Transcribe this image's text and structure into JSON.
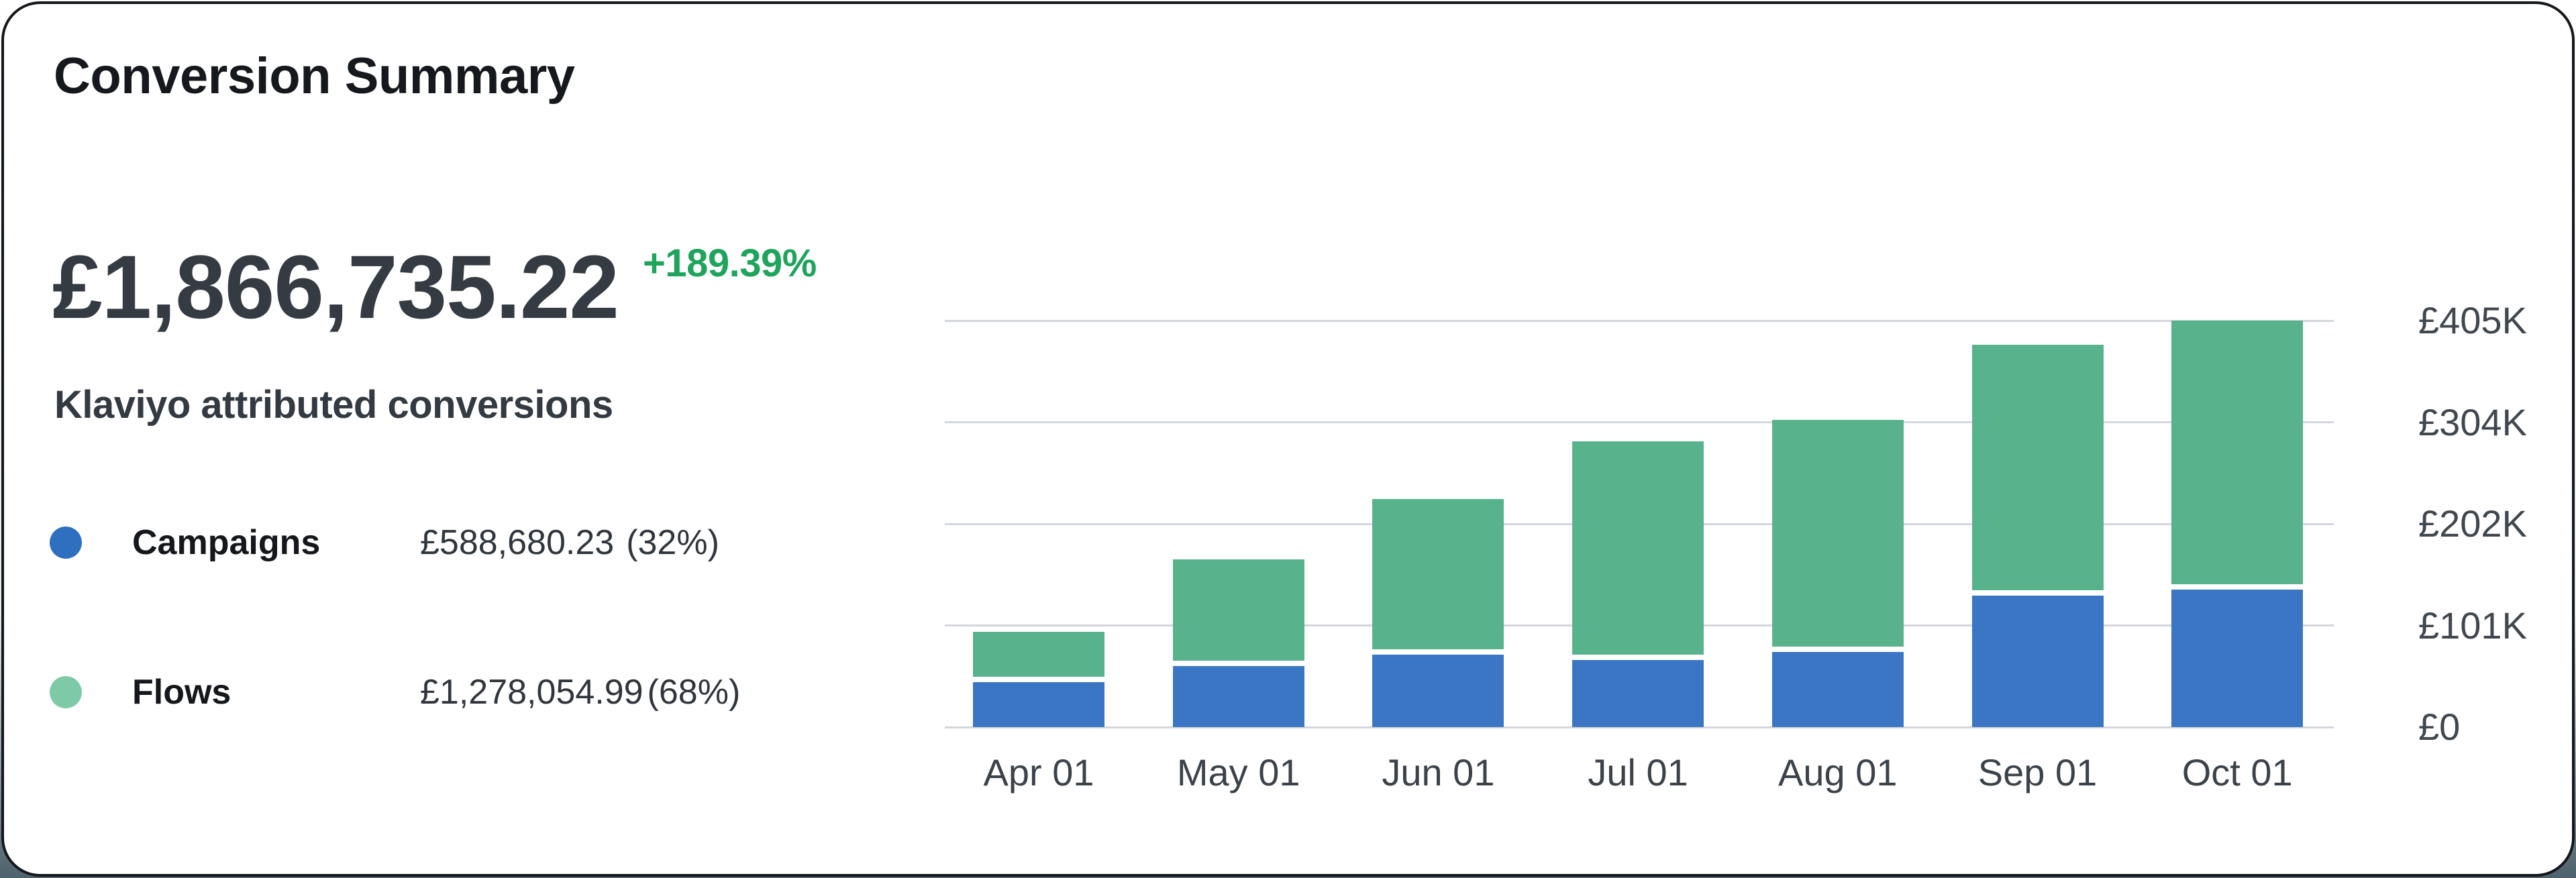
{
  "card": {
    "title": "Conversion Summary"
  },
  "summary": {
    "total_value": "£1,866,735.22",
    "change": "+189.39%",
    "change_color": "#1fa45c",
    "subtitle": "Klaviyo attributed conversions"
  },
  "legend": {
    "items": [
      {
        "name": "Campaigns",
        "value": "£588,680.23",
        "percent": "(32%)",
        "color": "#2f6fc0"
      },
      {
        "name": "Flows",
        "value": "£1,278,054.99",
        "percent": "(68%)",
        "color": "#7fcaa6"
      }
    ]
  },
  "chart_data": {
    "type": "bar",
    "stacked": true,
    "categories": [
      "Apr 01",
      "May 01",
      "Jun 01",
      "Jul 01",
      "Aug 01",
      "Sep 01",
      "Oct 01"
    ],
    "series": [
      {
        "name": "Campaigns",
        "color": "#3b76c5",
        "values": [
          45000,
          61000,
          72000,
          67000,
          75000,
          131000,
          137000
        ]
      },
      {
        "name": "Flows",
        "color": "#58b28c",
        "values": [
          50000,
          106000,
          155000,
          218000,
          231000,
          250000,
          268000
        ]
      }
    ],
    "yticks": [
      "£405K",
      "£304K",
      "£202K",
      "£101K",
      "£0"
    ],
    "ylim": [
      0,
      405000
    ],
    "currency": "GBP",
    "grid": true,
    "gridline_color": "#d3d7dc",
    "legend_position": "left",
    "title": "Conversion Summary",
    "xlabel": "",
    "ylabel": ""
  }
}
